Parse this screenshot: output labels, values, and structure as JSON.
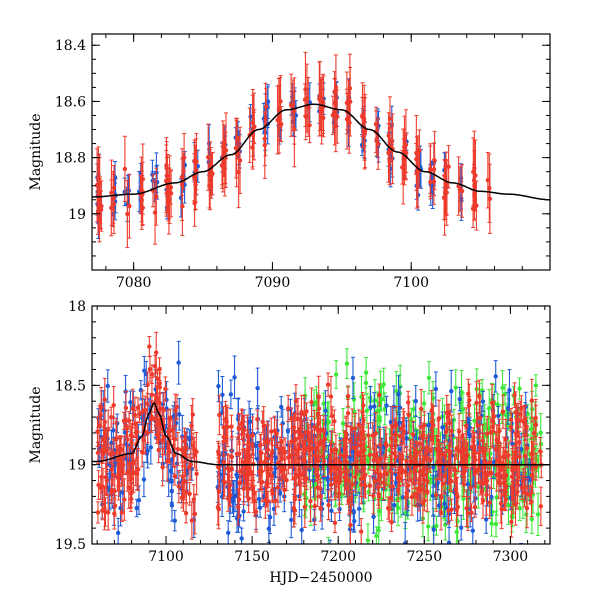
{
  "chart_data": [
    {
      "type": "scatter",
      "panel": "top",
      "title": "",
      "xlabel": "",
      "ylabel": "Magnitude",
      "xlim": [
        7077,
        7110
      ],
      "ylim": [
        19.2,
        18.36
      ],
      "y_inverted": true,
      "xticks": [
        7080,
        7090,
        7100
      ],
      "xtick_labels": [
        "7080",
        "7090",
        "7100"
      ],
      "yticks": [
        18.4,
        18.6,
        18.8,
        19.0
      ],
      "ytick_labels": [
        "18.4",
        "18.6",
        "18.8",
        "19"
      ],
      "grid": false,
      "model_curve": {
        "name": "lensing model",
        "color": "#000000",
        "x": [
          7077,
          7080,
          7083,
          7085,
          7087,
          7089,
          7091,
          7093,
          7095,
          7097,
          7099,
          7101,
          7103,
          7105,
          7107,
          7110
        ],
        "mag": [
          18.94,
          18.93,
          18.89,
          18.85,
          18.79,
          18.7,
          18.63,
          18.61,
          18.63,
          18.7,
          18.78,
          18.85,
          18.89,
          18.92,
          18.93,
          18.95
        ]
      },
      "series": [
        {
          "name": "red observations",
          "color": "#ee3b2c",
          "x_range": [
            7077,
            7106
          ],
          "approx_mean_error": 0.09
        },
        {
          "name": "blue observations",
          "color": "#1f5bd6",
          "x_range": [
            7077,
            7104
          ],
          "approx_mean_error": 0.05
        }
      ]
    },
    {
      "type": "scatter",
      "panel": "bottom",
      "title": "",
      "xlabel": "HJD−2450000",
      "ylabel": "Magnitude",
      "xlim": [
        7057,
        7323
      ],
      "ylim": [
        19.5,
        18.0
      ],
      "y_inverted": true,
      "xticks": [
        7100,
        7150,
        7200,
        7250,
        7300
      ],
      "xtick_labels": [
        "7100",
        "7150",
        "7200",
        "7250",
        "7300"
      ],
      "yticks": [
        18.0,
        18.5,
        19.0,
        19.5
      ],
      "ytick_labels": [
        "18",
        "18.5",
        "19",
        "19.5"
      ],
      "grid": false,
      "model_curve": {
        "name": "lensing model",
        "color": "#000000",
        "x": [
          7060,
          7080,
          7086,
          7090,
          7093,
          7096,
          7100,
          7106,
          7115,
          7130
        ],
        "mag": [
          18.98,
          18.93,
          18.82,
          18.68,
          18.61,
          18.68,
          18.82,
          18.93,
          18.98,
          19.0
        ]
      },
      "series": [
        {
          "name": "red observations",
          "color": "#ee3b2c",
          "x_range": [
            7060,
            7318
          ],
          "baseline_mag": 18.98,
          "approx_scatter": 0.18
        },
        {
          "name": "blue observations",
          "color": "#1f5bd6",
          "x_range": [
            7060,
            7312
          ],
          "baseline_mag": 18.98,
          "approx_scatter": 0.22
        },
        {
          "name": "green observations",
          "color": "#3ee83a",
          "x_range": [
            7180,
            7318
          ],
          "baseline_mag": 18.95,
          "approx_scatter": 0.25
        }
      ]
    }
  ]
}
